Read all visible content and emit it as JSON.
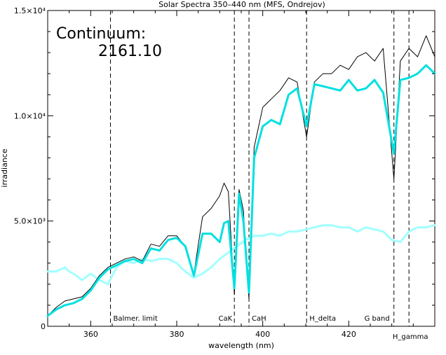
{
  "chart_data": {
    "type": "line",
    "title": "Solar Spectra 350–440 nm (MFS, Ondrejov)",
    "xlabel": "wavelength (nm)",
    "ylabel": "irradiance",
    "xlim": [
      350,
      440
    ],
    "ylim": [
      0,
      15000
    ],
    "x_ticks": [
      360,
      380,
      400,
      420
    ],
    "x_tick_labels": [
      "360",
      "380",
      "400",
      "420"
    ],
    "y_ticks": [
      0,
      5000,
      10000,
      15000
    ],
    "y_tick_labels": [
      "0",
      "5.0×10³",
      "1.0×10⁴",
      "1.5×10⁴"
    ],
    "grid": false,
    "annotation": {
      "label": "Continuum:",
      "value": "2161.10"
    },
    "markers": [
      {
        "x": 364.6,
        "label": "Balmer. limit"
      },
      {
        "x": 393.4,
        "label": "CaK"
      },
      {
        "x": 396.8,
        "label": "CaH"
      },
      {
        "x": 410.2,
        "label": "H_delta"
      },
      {
        "x": 430.5,
        "label": "G band"
      },
      {
        "x": 434.0,
        "label": "H_gamma"
      }
    ],
    "series": [
      {
        "color": "#000000",
        "x": [
          350,
          352,
          354,
          356,
          358,
          360,
          362,
          364,
          366,
          368,
          370,
          372,
          374,
          376,
          378,
          380,
          382,
          384,
          386,
          388,
          390,
          391,
          392,
          393.4,
          394.5,
          395.5,
          396.8,
          398,
          400,
          402,
          404,
          406,
          408,
          410.2,
          412,
          414,
          416,
          418,
          420,
          422,
          424,
          426,
          428,
          430.5,
          432,
          434,
          436,
          438,
          440
        ],
        "values": [
          500,
          900,
          1200,
          1300,
          1400,
          1800,
          2400,
          2800,
          3000,
          3200,
          3300,
          3100,
          3900,
          3800,
          4300,
          4300,
          3800,
          2500,
          5200,
          5600,
          6200,
          6800,
          6400,
          1500,
          6500,
          5500,
          1300,
          8500,
          10400,
          10800,
          11200,
          11800,
          11600,
          9000,
          11600,
          12000,
          12000,
          12400,
          12200,
          12800,
          13000,
          12600,
          13200,
          7000,
          12600,
          13200,
          12800,
          13800,
          12800
        ]
      },
      {
        "color": "#00e0e0",
        "x": [
          350,
          352,
          354,
          356,
          358,
          360,
          362,
          364,
          366,
          368,
          370,
          372,
          374,
          376,
          378,
          380,
          382,
          384,
          386,
          388,
          390,
          391,
          392,
          393.4,
          394.5,
          395.5,
          396.8,
          398,
          400,
          402,
          404,
          406,
          408,
          410.2,
          412,
          414,
          416,
          418,
          420,
          422,
          424,
          426,
          428,
          430.5,
          432,
          434,
          436,
          438,
          440
        ],
        "values": [
          500,
          800,
          1000,
          1100,
          1300,
          1700,
          2300,
          2700,
          2900,
          3100,
          3200,
          3000,
          3700,
          3600,
          4100,
          4200,
          3800,
          2400,
          4400,
          4400,
          4000,
          4900,
          5000,
          1800,
          6300,
          5000,
          1600,
          8000,
          9500,
          9800,
          9600,
          11000,
          11300,
          9500,
          11500,
          11400,
          11300,
          11200,
          11700,
          11200,
          11300,
          11700,
          11100,
          8200,
          11700,
          11800,
          12000,
          12400,
          12000
        ]
      },
      {
        "color": "#a0ffff",
        "x": [
          350,
          352,
          354,
          355,
          356,
          358,
          360,
          362,
          364,
          366,
          368,
          370,
          372,
          374,
          376,
          378,
          380,
          382,
          384,
          386,
          388,
          390,
          392,
          394,
          396,
          398,
          400,
          402,
          404,
          406,
          408,
          410,
          412,
          414,
          416,
          418,
          420,
          422,
          424,
          426,
          428,
          430,
          432,
          434,
          436,
          438,
          440
        ],
        "values": [
          2600,
          2600,
          2800,
          2600,
          2500,
          2200,
          2500,
          2200,
          2000,
          2800,
          3100,
          3000,
          3200,
          3100,
          3200,
          3200,
          3000,
          2600,
          2300,
          2500,
          2800,
          3200,
          3500,
          3800,
          4100,
          4300,
          4300,
          4400,
          4300,
          4500,
          4500,
          4600,
          4700,
          4800,
          4800,
          4700,
          4700,
          4500,
          4700,
          4600,
          4500,
          4100,
          4000,
          4500,
          4700,
          4700,
          4800
        ]
      }
    ]
  }
}
